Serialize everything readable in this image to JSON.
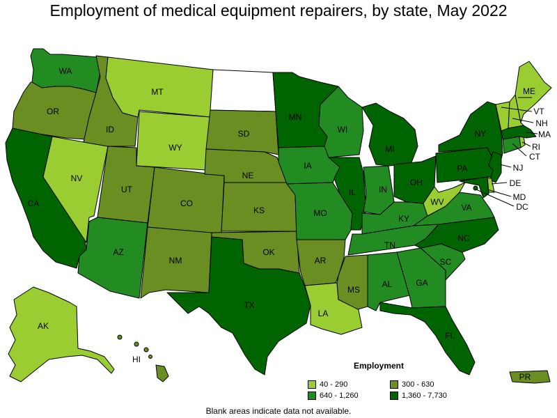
{
  "title": "Employment of medical equipment repairers, by state, May 2022",
  "note": "Blank areas indicate data not available.",
  "legend": {
    "title": "Employment",
    "items": [
      {
        "label": "40 - 290",
        "color": "#9acd32"
      },
      {
        "label": "300 - 630",
        "color": "#6b8e23"
      },
      {
        "label": "640 - 1,260",
        "color": "#228b22"
      },
      {
        "label": "1,360 - 7,730",
        "color": "#006400"
      }
    ]
  },
  "colors": {
    "no_data": "#ffffff",
    "bin1": "#9acd32",
    "bin2": "#6b8e23",
    "bin3": "#228b22",
    "bin4": "#006400"
  },
  "states": {
    "WA": {
      "label": "WA",
      "bin": 3
    },
    "OR": {
      "label": "OR",
      "bin": 2
    },
    "CA": {
      "label": "CA",
      "bin": 4
    },
    "NV": {
      "label": "NV",
      "bin": 1
    },
    "ID": {
      "label": "ID",
      "bin": 2
    },
    "MT": {
      "label": "MT",
      "bin": 1
    },
    "WY": {
      "label": "WY",
      "bin": 1
    },
    "ND": {
      "label": "",
      "bin": 0
    },
    "SD": {
      "label": "SD",
      "bin": 2
    },
    "NE": {
      "label": "NE",
      "bin": 2
    },
    "KS": {
      "label": "KS",
      "bin": 2
    },
    "OK": {
      "label": "OK",
      "bin": 2
    },
    "TX": {
      "label": "TX",
      "bin": 4
    },
    "UT": {
      "label": "UT",
      "bin": 2
    },
    "CO": {
      "label": "CO",
      "bin": 2
    },
    "AZ": {
      "label": "AZ",
      "bin": 3
    },
    "NM": {
      "label": "NM",
      "bin": 2
    },
    "MN": {
      "label": "MN",
      "bin": 4
    },
    "IA": {
      "label": "IA",
      "bin": 3
    },
    "MO": {
      "label": "MO",
      "bin": 3
    },
    "AR": {
      "label": "AR",
      "bin": 2
    },
    "LA": {
      "label": "LA",
      "bin": 1
    },
    "WI": {
      "label": "WI",
      "bin": 3
    },
    "IL": {
      "label": "IL",
      "bin": 4
    },
    "MI": {
      "label": "MI",
      "bin": 4
    },
    "IN": {
      "label": "IN",
      "bin": 3
    },
    "OH": {
      "label": "OH",
      "bin": 4
    },
    "KY": {
      "label": "KY",
      "bin": 3
    },
    "TN": {
      "label": "TN",
      "bin": 3
    },
    "MS": {
      "label": "MS",
      "bin": 2
    },
    "AL": {
      "label": "AL",
      "bin": 3
    },
    "GA": {
      "label": "GA",
      "bin": 3
    },
    "FL": {
      "label": "FL",
      "bin": 4
    },
    "SC": {
      "label": "SC",
      "bin": 3
    },
    "NC": {
      "label": "NC",
      "bin": 4
    },
    "VA": {
      "label": "VA",
      "bin": 3
    },
    "WV": {
      "label": "WV",
      "bin": 1
    },
    "PA": {
      "label": "PA",
      "bin": 4
    },
    "NY": {
      "label": "NY",
      "bin": 4
    },
    "NJ": {
      "label": "NJ",
      "bin": 4
    },
    "DE": {
      "label": "DE",
      "bin": 1
    },
    "MD": {
      "label": "MD",
      "bin": 4
    },
    "DC": {
      "label": "DC",
      "bin": 4
    },
    "CT": {
      "label": "CT",
      "bin": 3
    },
    "RI": {
      "label": "RI",
      "bin": 1
    },
    "MA": {
      "label": "MA",
      "bin": 4
    },
    "VT": {
      "label": "VT",
      "bin": 1
    },
    "NH": {
      "label": "NH",
      "bin": 1
    },
    "ME": {
      "label": "ME",
      "bin": 1
    },
    "AK": {
      "label": "AK",
      "bin": 1
    },
    "HI": {
      "label": "HI",
      "bin": 2
    },
    "PR": {
      "label": "PR",
      "bin": 2
    }
  }
}
